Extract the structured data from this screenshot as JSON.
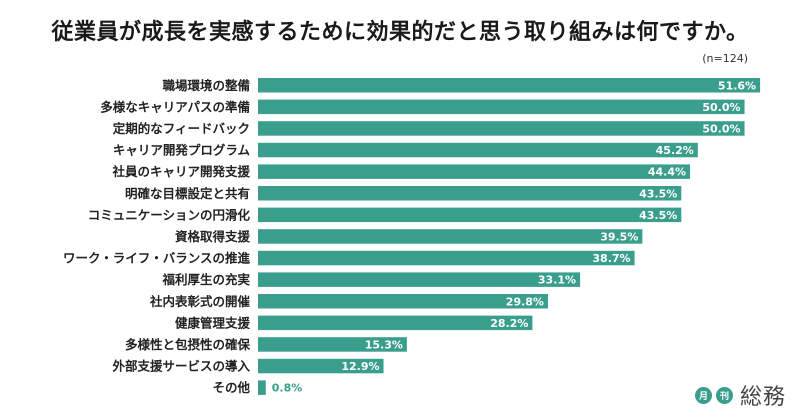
{
  "title": "従業員が成長を実感するために効果的だと思う取り組みは何ですか。",
  "note": "(n=124)",
  "brand": {
    "badge1": "月",
    "badge2": "刊",
    "name": "総務"
  },
  "colors": {
    "bar": "#3a9e8d",
    "label_on_bar": "#ffffff",
    "label_outside": "#3a9e8d"
  },
  "chart_data": {
    "type": "bar",
    "orientation": "horizontal",
    "categories": [
      "職場環境の整備",
      "多様なキャリアパスの準備",
      "定期的なフィードバック",
      "キャリア開発プログラム",
      "社員のキャリア開発支援",
      "明確な目標設定と共有",
      "コミュニケーションの円滑化",
      "資格取得支援",
      "ワーク・ライフ・バランスの推進",
      "福利厚生の充実",
      "社内表彰式の開催",
      "健康管理支援",
      "多様性と包摂性の確保",
      "外部支援サービスの導入",
      "その他"
    ],
    "values": [
      51.6,
      50.0,
      50.0,
      45.2,
      44.4,
      43.5,
      43.5,
      39.5,
      38.7,
      33.1,
      29.8,
      28.2,
      15.3,
      12.9,
      0.8
    ],
    "value_labels": [
      "51.6%",
      "50.0%",
      "50.0%",
      "45.2%",
      "44.4%",
      "43.5%",
      "43.5%",
      "39.5%",
      "38.7%",
      "33.1%",
      "29.8%",
      "28.2%",
      "15.3%",
      "12.9%",
      "0.8%"
    ],
    "xlim": [
      0,
      52
    ],
    "grid": false
  }
}
